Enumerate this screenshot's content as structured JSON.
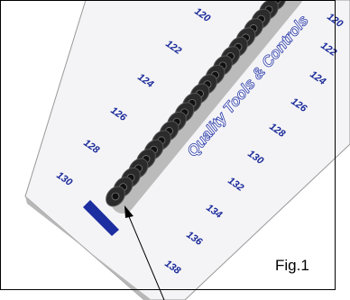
{
  "figure_label": "Fig.1",
  "brand": "Quality Tools & Controls",
  "left_scale": [
    "120",
    "122",
    "124",
    "126",
    "128",
    "130"
  ],
  "right_scale": [
    "120",
    "122",
    "124",
    "126",
    "128",
    "130",
    "132",
    "134",
    "136",
    "138"
  ]
}
